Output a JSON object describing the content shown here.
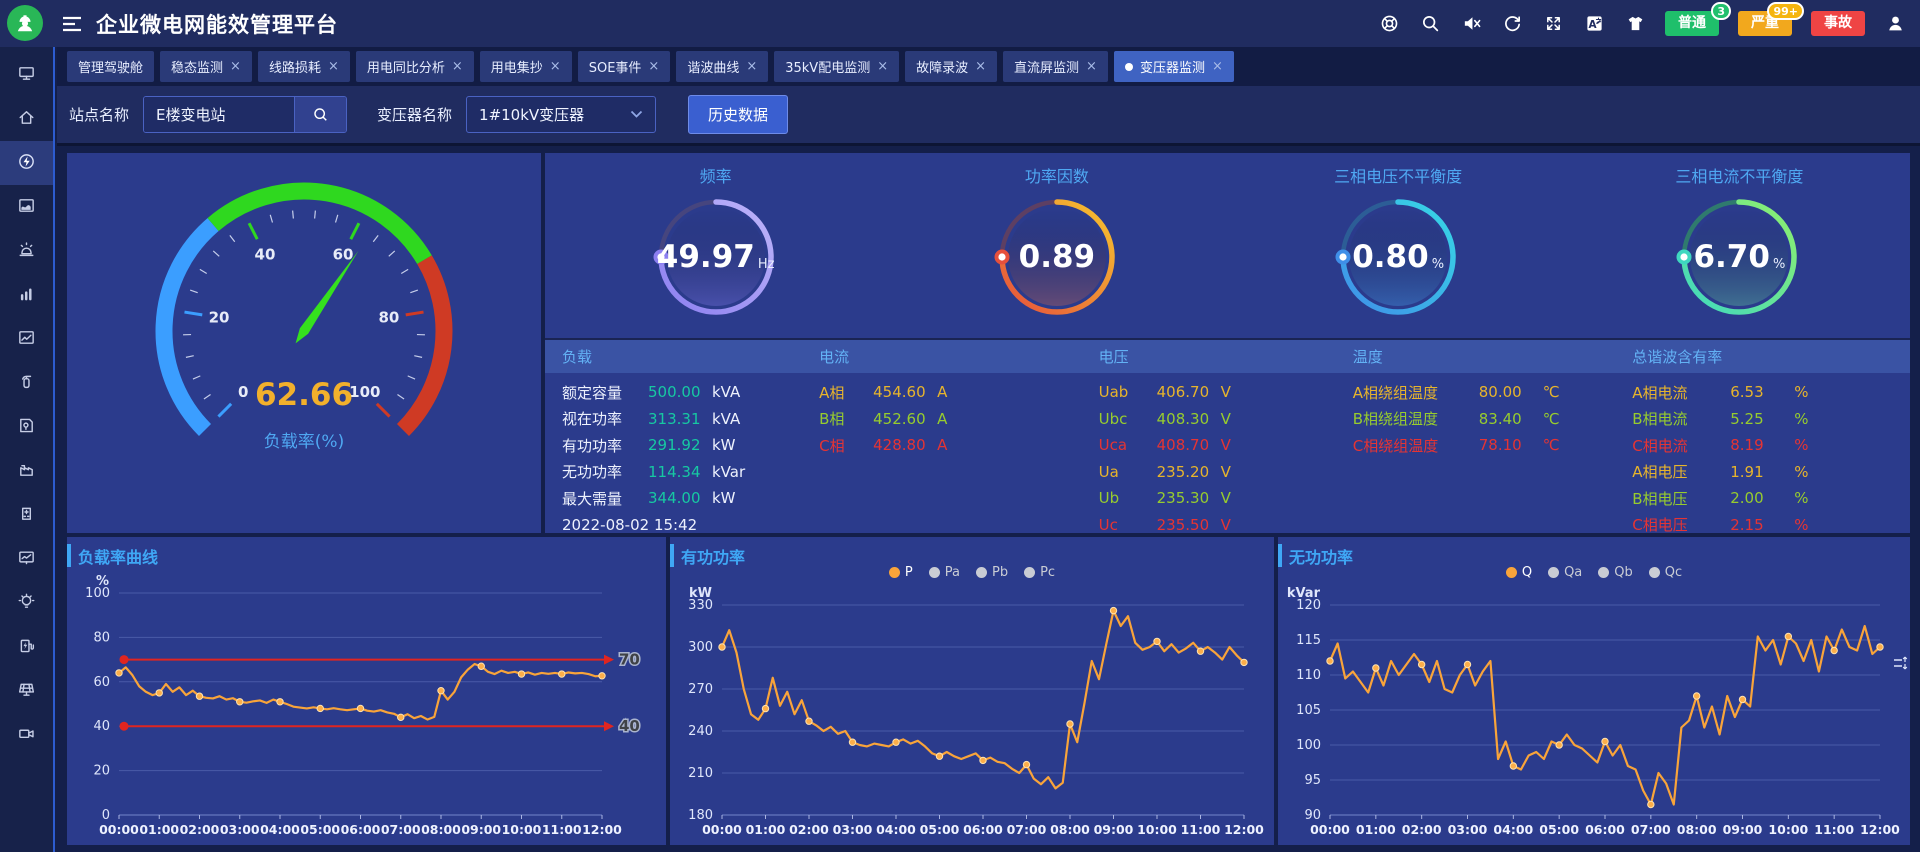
{
  "colors": {
    "accent_blue": "#3fa7f5",
    "panel_bg": "#2b3b8c",
    "header_bg": "#202c60",
    "line_orange": "#f9a43a",
    "alarm_green": "#1fbf6b",
    "alarm_amber": "#f2a81d",
    "alarm_red": "#ef4444",
    "value_teal": "#17c8a2",
    "value_yellow": "#e7b42c",
    "value_green": "#97cc2e",
    "value_red": "#e43434"
  },
  "header": {
    "title": "企业微电网能效管理平台",
    "action_icons": [
      "help-icon",
      "search-icon",
      "mute-icon",
      "refresh-icon",
      "fullscreen-icon",
      "translate-icon",
      "theme-icon"
    ],
    "alarms": [
      {
        "label": "普通",
        "badge": "3",
        "color": "#1fbf6b",
        "badge_color": "#22c06d"
      },
      {
        "label": "严重",
        "badge": "99+",
        "color": "#f2a81d",
        "badge_color": "#f5b50f"
      },
      {
        "label": "事故",
        "badge": "",
        "color": "#ef4444",
        "badge_color": ""
      }
    ]
  },
  "tabs": [
    {
      "label": "管理驾驶舱",
      "closable": false,
      "active": false
    },
    {
      "label": "稳态监测",
      "closable": true,
      "active": false
    },
    {
      "label": "线路损耗",
      "closable": true,
      "active": false
    },
    {
      "label": "用电同比分析",
      "closable": true,
      "active": false
    },
    {
      "label": "用电集抄",
      "closable": true,
      "active": false
    },
    {
      "label": "SOE事件",
      "closable": true,
      "active": false
    },
    {
      "label": "谐波曲线",
      "closable": true,
      "active": false
    },
    {
      "label": "35kV配电监测",
      "closable": true,
      "active": false
    },
    {
      "label": "故障录波",
      "closable": true,
      "active": false
    },
    {
      "label": "直流屏监测",
      "closable": true,
      "active": false
    },
    {
      "label": "变压器监测",
      "closable": true,
      "active": true
    }
  ],
  "filters": {
    "site_label": "站点名称",
    "site_value": "E楼变电站",
    "transformer_label": "变压器名称",
    "transformer_value": "1#10kV变压器",
    "history_button": "历史数据"
  },
  "sidebar": {
    "items": [
      {
        "icon": "monitor-icon",
        "active": false
      },
      {
        "icon": "home-icon",
        "active": false
      },
      {
        "icon": "energy-icon",
        "active": true
      },
      {
        "icon": "area-chart-icon",
        "active": false
      },
      {
        "icon": "alarm-icon",
        "active": false
      },
      {
        "icon": "bar-chart-icon",
        "active": false
      },
      {
        "icon": "trend-chart-icon",
        "active": false
      },
      {
        "icon": "extinguisher-icon",
        "active": false
      },
      {
        "icon": "map-book-icon",
        "active": false
      },
      {
        "icon": "factory-icon",
        "active": false
      },
      {
        "icon": "building-icon",
        "active": false
      },
      {
        "icon": "screen-chart-icon",
        "active": false
      },
      {
        "icon": "bulb-icon",
        "active": false
      },
      {
        "icon": "ev-charger-icon",
        "active": false
      },
      {
        "icon": "solar-panel-icon",
        "active": false
      },
      {
        "icon": "camera-icon",
        "active": false
      }
    ]
  },
  "gauge": {
    "value": "62.66",
    "value_num": 62.66,
    "min": 0,
    "max": 100,
    "label": "负载率(%)",
    "ticks": [
      0,
      20,
      40,
      60,
      80,
      100
    ],
    "zones": [
      {
        "to": 35,
        "color": "#3b9eff"
      },
      {
        "to": 72,
        "color": "#2fd81f"
      },
      {
        "to": 100,
        "color": "#cf3a24"
      }
    ],
    "needle_color": "#35e01e",
    "value_color": "#f2b02c",
    "label_color": "#4fa8f2"
  },
  "rings": [
    {
      "title": "频率",
      "value": "49.97",
      "unit": "Hz",
      "color1": "#8c7ff0",
      "color2": "#beb5fa",
      "track": "#46457e",
      "tint": "rgba(140,127,240,0.30)",
      "fraction": 0.75
    },
    {
      "title": "功率因数",
      "value": "0.89",
      "unit": "",
      "color1": "#e6503c",
      "color2": "#f6c52e",
      "track": "#5d3f63",
      "tint": "rgba(230,110,70,0.30)",
      "fraction": 0.75
    },
    {
      "title": "三相电压不平衡度",
      "value": "0.80",
      "unit": "%",
      "color1": "#3f8fe8",
      "color2": "#37d8e6",
      "track": "#2c5d96",
      "tint": "rgba(70,160,230,0.35)",
      "fraction": 0.75
    },
    {
      "title": "三相电流不平衡度",
      "value": "6.70",
      "unit": "%",
      "color1": "#3fd8c0",
      "color2": "#8ff06c",
      "track": "#2f7a6e",
      "tint": "rgba(110,230,160,0.30)",
      "fraction": 0.75
    }
  ],
  "table": {
    "timestamp": "2022-08-02 15:42",
    "columns": [
      {
        "title": "负载",
        "label_w": 72,
        "rows": [
          {
            "label": "额定容量",
            "value": "500.00",
            "unit": "kVA",
            "color": "teal"
          },
          {
            "label": "视在功率",
            "value": "313.31",
            "unit": "kVA",
            "color": "teal"
          },
          {
            "label": "有功功率",
            "value": "291.92",
            "unit": "kW",
            "color": "teal"
          },
          {
            "label": "无功功率",
            "value": "114.34",
            "unit": "kVar",
            "color": "teal"
          },
          {
            "label": "最大需量",
            "value": "344.00",
            "unit": "kW",
            "color": "teal"
          },
          {
            "label": "2022-08-02 15:42",
            "value": "",
            "unit": "",
            "color": "plain"
          }
        ]
      },
      {
        "title": "电流",
        "label_w": 40,
        "rows": [
          {
            "label": "A相",
            "value": "454.60",
            "unit": "A",
            "color": "yellow"
          },
          {
            "label": "B相",
            "value": "452.60",
            "unit": "A",
            "color": "green"
          },
          {
            "label": "C相",
            "value": "428.80",
            "unit": "A",
            "color": "red"
          }
        ]
      },
      {
        "title": "电压",
        "label_w": 44,
        "rows": [
          {
            "label": "Uab",
            "value": "406.70",
            "unit": "V",
            "color": "yellow"
          },
          {
            "label": "Ubc",
            "value": "408.30",
            "unit": "V",
            "color": "green"
          },
          {
            "label": "Uca",
            "value": "408.70",
            "unit": "V",
            "color": "red"
          },
          {
            "label": "Ua",
            "value": "235.20",
            "unit": "V",
            "color": "yellow"
          },
          {
            "label": "Ub",
            "value": "235.30",
            "unit": "V",
            "color": "green"
          },
          {
            "label": "Uc",
            "value": "235.50",
            "unit": "V",
            "color": "red"
          }
        ]
      },
      {
        "title": "温度",
        "label_w": 112,
        "rows": [
          {
            "label": "A相绕组温度",
            "value": "80.00",
            "unit": "℃",
            "color": "yellow"
          },
          {
            "label": "B相绕组温度",
            "value": "83.40",
            "unit": "℃",
            "color": "green"
          },
          {
            "label": "C相绕组温度",
            "value": "78.10",
            "unit": "℃",
            "color": "red"
          }
        ]
      },
      {
        "title": "总谐波含有率",
        "label_w": 84,
        "rows": [
          {
            "label": "A相电流",
            "value": "6.53",
            "unit": "%",
            "color": "yellow"
          },
          {
            "label": "B相电流",
            "value": "5.25",
            "unit": "%",
            "color": "green"
          },
          {
            "label": "C相电流",
            "value": "8.19",
            "unit": "%",
            "color": "red"
          },
          {
            "label": "A相电压",
            "value": "1.91",
            "unit": "%",
            "color": "yellow"
          },
          {
            "label": "B相电压",
            "value": "2.00",
            "unit": "%",
            "color": "green"
          },
          {
            "label": "C相电压",
            "value": "2.15",
            "unit": "%",
            "color": "red"
          }
        ]
      }
    ]
  },
  "chart_data": [
    {
      "type": "line",
      "title": "负载率曲线",
      "unit": "%",
      "ylim": [
        0,
        100
      ],
      "yticks": [
        0,
        20,
        40,
        60,
        80,
        100
      ],
      "x": [
        "00:00",
        "01:00",
        "02:00",
        "03:00",
        "04:00",
        "05:00",
        "06:00",
        "07:00",
        "08:00",
        "09:00",
        "10:00",
        "11:00",
        "12:00"
      ],
      "series": [
        {
          "name": "负载率",
          "color": "#f9a43a",
          "values": [
            64,
            66.5,
            63,
            58,
            55.5,
            54,
            55,
            59,
            55.5,
            57.5,
            54,
            56,
            53.5,
            52.8,
            52.5,
            53.5,
            52,
            52.6,
            51,
            50.6,
            51.2,
            51.6,
            50.5,
            52,
            51,
            50,
            48.8,
            48.4,
            48,
            48.5,
            48,
            47.6,
            48.1,
            47.6,
            47.2,
            47.6,
            48,
            47,
            46.6,
            47.2,
            46.2,
            45.6,
            44,
            45.4,
            43.6,
            44.6,
            43,
            44.2,
            56,
            52,
            55.5,
            62,
            65.5,
            68,
            67,
            64.5,
            63.5,
            65,
            64,
            64.5,
            63.5,
            64.2,
            63.2,
            64,
            63.6,
            64,
            63.5,
            64.2,
            63.8,
            64,
            63.5,
            62.5,
            62.7
          ]
        }
      ],
      "marklines": [
        {
          "value": 70,
          "label": "70"
        },
        {
          "value": 40,
          "label": "40"
        }
      ],
      "marker_every": 6,
      "legend": []
    },
    {
      "type": "line",
      "title": "有功功率",
      "unit": "kW",
      "ylim": [
        180,
        330
      ],
      "yticks": [
        180,
        210,
        240,
        270,
        300,
        330
      ],
      "x": [
        "00:00",
        "01:00",
        "02:00",
        "03:00",
        "04:00",
        "05:00",
        "06:00",
        "07:00",
        "08:00",
        "09:00",
        "10:00",
        "11:00",
        "12:00"
      ],
      "legend": [
        {
          "label": "P",
          "color": "#f9a43a",
          "active": true
        },
        {
          "label": "Pa",
          "color": "#c9ccd4",
          "active": false
        },
        {
          "label": "Pb",
          "color": "#c9ccd4",
          "active": false
        },
        {
          "label": "Pc",
          "color": "#c9ccd4",
          "active": false
        }
      ],
      "series": [
        {
          "name": "P",
          "color": "#f9a43a",
          "values": [
            300,
            312,
            296,
            270,
            252,
            248,
            256,
            278,
            258,
            268,
            252,
            262,
            247,
            244,
            240,
            243,
            238,
            240,
            232,
            230,
            229,
            231,
            230,
            229,
            232,
            234,
            231,
            233,
            229,
            224,
            222,
            225,
            222,
            220,
            222,
            224,
            219,
            221,
            218,
            217,
            213,
            210,
            216,
            206,
            202,
            207,
            199,
            203,
            245,
            232,
            260,
            290,
            277,
            302,
            326,
            315,
            322,
            303,
            298,
            300,
            304,
            297,
            302,
            296,
            299,
            303,
            297,
            300,
            296,
            291,
            300,
            294,
            289
          ]
        }
      ],
      "marker_every": 6
    },
    {
      "type": "line",
      "title": "无功功率",
      "unit": "kVar",
      "ylim": [
        90,
        120
      ],
      "yticks": [
        90,
        95,
        100,
        105,
        110,
        115,
        120
      ],
      "x": [
        "00:00",
        "01:00",
        "02:00",
        "03:00",
        "04:00",
        "05:00",
        "06:00",
        "07:00",
        "08:00",
        "09:00",
        "10:00",
        "11:00",
        "12:00"
      ],
      "legend": [
        {
          "label": "Q",
          "color": "#f9a43a",
          "active": true
        },
        {
          "label": "Qa",
          "color": "#c9ccd4",
          "active": false
        },
        {
          "label": "Qb",
          "color": "#c9ccd4",
          "active": false
        },
        {
          "label": "Qc",
          "color": "#c9ccd4",
          "active": false
        }
      ],
      "series": [
        {
          "name": "Q",
          "color": "#f9a43a",
          "values": [
            112,
            114.5,
            109.5,
            110.5,
            109,
            107.5,
            111,
            108.5,
            112,
            110,
            111.5,
            113,
            111.5,
            109,
            112,
            108,
            107.5,
            110,
            111.5,
            108.5,
            110.5,
            112,
            98,
            100.5,
            97,
            96.5,
            98.5,
            99,
            98,
            100.5,
            100,
            101.5,
            100,
            99.5,
            98.5,
            97.5,
            100.5,
            98.5,
            100,
            97,
            96.5,
            93.5,
            91.5,
            96,
            94.5,
            91.5,
            102.5,
            103.5,
            107,
            102.5,
            105.5,
            101.5,
            107,
            104,
            106.5,
            105.5,
            115.5,
            113.5,
            115,
            111.5,
            115.5,
            114.5,
            112,
            115,
            110.5,
            115.5,
            113.5,
            116.5,
            114,
            113.5,
            117,
            113,
            114
          ]
        }
      ],
      "marker_every": 6,
      "zoom_tool": true
    }
  ]
}
